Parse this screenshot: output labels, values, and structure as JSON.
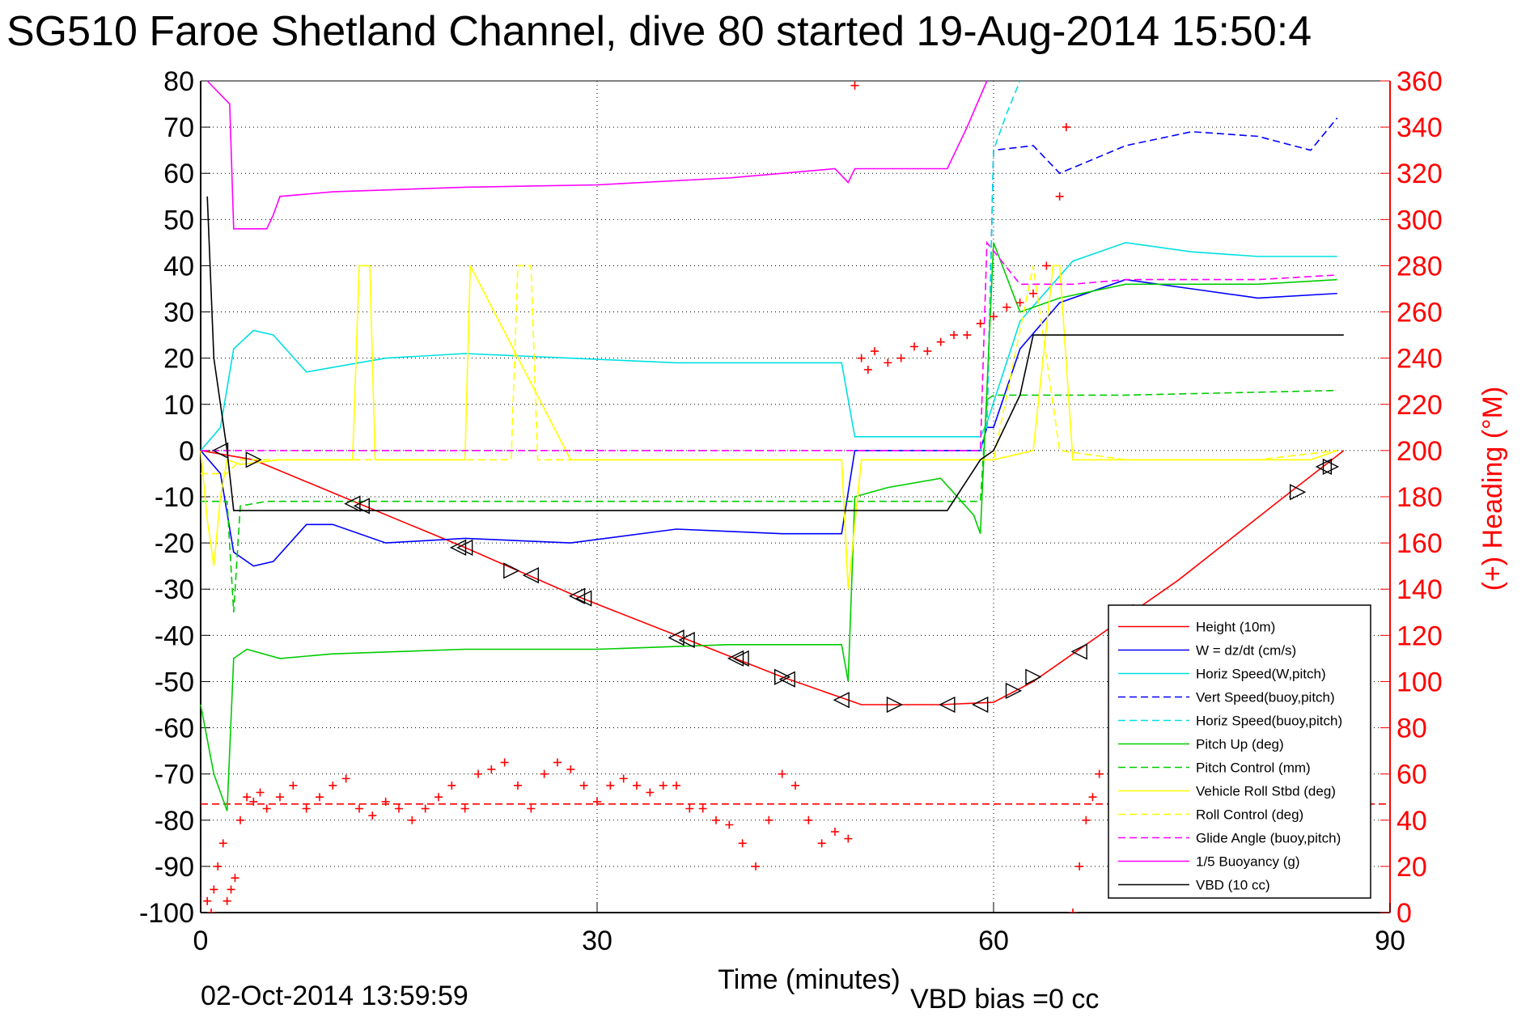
{
  "chart_data": {
    "type": "line",
    "title": "SG510 Faroe Shetland Channel, dive 80 started 19-Aug-2014 15:50:4",
    "xlabel": "Time (minutes)",
    "ylabel_right": "(+) Heading (°M)",
    "footer_date": "02-Oct-2014 13:59:59",
    "footer_note": "VBD bias =0 cc",
    "xlim": [
      0,
      90
    ],
    "ylim_left": [
      -100,
      80
    ],
    "ylim_right": [
      0,
      360
    ],
    "x_ticks": [
      "0",
      "30",
      "60",
      "90"
    ],
    "y_left_ticks": [
      "80",
      "70",
      "60",
      "50",
      "40",
      "30",
      "20",
      "10",
      "0",
      "-10",
      "-20",
      "-30",
      "-40",
      "-50",
      "-60",
      "-70",
      "-80",
      "-90",
      "-100"
    ],
    "y_right_ticks": [
      "360",
      "340",
      "320",
      "300",
      "280",
      "260",
      "240",
      "220",
      "200",
      "180",
      "160",
      "140",
      "120",
      "100",
      "80",
      "60",
      "40",
      "20",
      "0"
    ],
    "grid": true,
    "legend_position": "bottom-right",
    "series": [
      {
        "name": "Height (10m)",
        "color": "#ff0000",
        "style": "solid",
        "x": [
          0,
          4,
          12,
          20,
          28,
          36,
          44,
          49,
          50,
          56,
          60,
          63,
          66,
          70,
          74,
          78,
          82,
          86.5
        ],
        "y": [
          0,
          -2,
          -11.5,
          -21,
          -31,
          -40,
          -49,
          -54,
          -55,
          -55,
          -54.5,
          -50,
          -44,
          -36,
          -28,
          -19,
          -10,
          0
        ]
      },
      {
        "name": "W = dz/dt (cm/s)",
        "color": "#0000ff",
        "style": "solid",
        "x": [
          0,
          1.5,
          2.5,
          4,
          5.5,
          8,
          10,
          14,
          20,
          28,
          36,
          44,
          48.5,
          49.5,
          55,
          59,
          59.5,
          60,
          62,
          65,
          70,
          75,
          80,
          86
        ],
        "y": [
          0,
          -5,
          -22,
          -25,
          -24,
          -16,
          -16,
          -20,
          -19,
          -20,
          -17,
          -18,
          -18,
          0,
          0,
          0,
          5,
          5,
          22,
          32,
          37,
          35,
          33,
          34
        ]
      },
      {
        "name": "Horiz Speed(W,pitch)",
        "color": "#00e0e0",
        "style": "solid",
        "x": [
          0,
          1.5,
          2.5,
          4,
          5.5,
          8,
          10,
          14,
          20,
          28,
          36,
          44,
          48.5,
          49.5,
          55,
          59,
          59.5,
          62,
          66,
          70,
          75,
          80,
          86
        ],
        "y": [
          0,
          5,
          22,
          26,
          25,
          17,
          18,
          20,
          21,
          20,
          19,
          19,
          19,
          3,
          3,
          3,
          6,
          28,
          41,
          45,
          43,
          42,
          42
        ]
      },
      {
        "name": "Vert Speed(buoy,pitch)",
        "color": "#0000ff",
        "style": "dashed",
        "x": [
          59,
          59.5,
          60,
          63,
          65,
          70,
          75,
          80,
          84,
          86
        ],
        "y": [
          0,
          5,
          65,
          66,
          60,
          66,
          69,
          68,
          65,
          72
        ]
      },
      {
        "name": "Horiz Speed(buoy,pitch)",
        "color": "#00e0e0",
        "style": "dashed",
        "x": [
          59,
          59.5,
          60,
          61,
          62
        ],
        "y": [
          0,
          5,
          65,
          73,
          80
        ]
      },
      {
        "name": "Pitch Up (deg)",
        "color": "#00cc00",
        "style": "solid",
        "x": [
          0,
          1,
          2,
          2.5,
          3.5,
          6,
          10,
          20,
          30,
          40,
          48.5,
          49,
          49.5,
          52,
          56,
          58.5,
          59,
          60,
          62,
          65,
          70,
          80,
          86
        ],
        "y": [
          -55,
          -70,
          -78,
          -45,
          -43,
          -45,
          -44,
          -43,
          -43,
          -42,
          -42,
          -50,
          -10,
          -8,
          -6,
          -14,
          -18,
          45,
          30,
          33,
          36,
          36,
          37
        ]
      },
      {
        "name": "Pitch Control (mm)",
        "color": "#00cc00",
        "style": "dashed",
        "x": [
          0,
          2,
          2.5,
          3,
          5,
          20,
          40,
          59,
          59.5,
          60,
          70,
          86
        ],
        "y": [
          -11,
          -11,
          -35,
          -12,
          -11,
          -11,
          -11,
          -11,
          11,
          12,
          12,
          13
        ]
      },
      {
        "name": "Vehicle Roll Stbd (deg)",
        "color": "#ffff00",
        "style": "solid",
        "x": [
          0,
          0.5,
          1,
          1.5,
          2,
          3,
          6,
          11.5,
          12,
          12.8,
          13.2,
          20,
          20.4,
          28,
          40,
          48.5,
          49,
          50,
          56,
          60,
          63,
          64.5,
          65,
          66,
          70,
          75,
          80,
          84,
          86
        ],
        "y": [
          0,
          -15,
          -25,
          -10,
          -2,
          -3,
          -2,
          -2,
          40,
          40,
          -2,
          -2,
          40,
          -2,
          -2,
          -2,
          -30,
          -2,
          -2,
          -2,
          0,
          40,
          40,
          -2,
          -2,
          -2,
          -2,
          -2,
          0
        ]
      },
      {
        "name": "Roll Control (deg)",
        "color": "#ffff00",
        "style": "dashed",
        "x": [
          0,
          2,
          3,
          5,
          23.5,
          24,
          25,
          25.5,
          30,
          40,
          48.5,
          49,
          50,
          56,
          60,
          63,
          65,
          70,
          80,
          86
        ],
        "y": [
          -5,
          -5,
          -2,
          -2,
          -2,
          40,
          40,
          -2,
          -2,
          -2,
          -2,
          -30,
          -2,
          -2,
          -2,
          40,
          0,
          -2,
          -2,
          0
        ]
      },
      {
        "name": "Glide Angle (buoy,pitch)",
        "color": "#ff00ff",
        "style": "dashed",
        "x": [
          0,
          20,
          40,
          59,
          59.5,
          62,
          66,
          70,
          80,
          86
        ],
        "y": [
          0,
          0,
          0,
          0,
          45,
          36,
          36,
          37,
          37,
          38
        ]
      },
      {
        "name": "1/5 Buoyancy (g)",
        "color": "#ff00ff",
        "style": "solid",
        "x": [
          0.5,
          2.2,
          2.5,
          5,
          5.5,
          6,
          10,
          20,
          30,
          40,
          48,
          49,
          49.5,
          55,
          56.5,
          58,
          59.5
        ],
        "y": [
          80,
          75,
          48,
          48,
          51,
          55,
          56,
          57,
          57.5,
          59,
          61,
          58,
          61,
          61,
          61,
          70,
          80
        ]
      },
      {
        "name": "VBD (10 cc)",
        "color": "#000000",
        "style": "solid",
        "x": [
          0.5,
          1,
          2,
          2.5,
          10,
          20,
          40,
          56.5,
          59,
          60,
          62,
          63,
          70,
          80,
          86.5
        ],
        "y": [
          55,
          20,
          0,
          -13,
          -13,
          -13,
          -13,
          -13,
          -2,
          0,
          12,
          25,
          25,
          25,
          25
        ]
      }
    ],
    "heading_points_right_axis": {
      "color": "#ff0000",
      "marker": "+",
      "x": [
        0.5,
        0.8,
        1,
        1.3,
        1.7,
        2,
        2.3,
        2.6,
        3,
        3.5,
        4,
        4.5,
        5,
        6,
        7,
        8,
        9,
        10,
        11,
        12,
        13,
        14,
        15,
        16,
        17,
        18,
        19,
        20,
        21,
        22,
        23,
        24,
        25,
        26,
        27,
        28,
        29,
        30,
        31,
        32,
        33,
        34,
        35,
        36,
        37,
        38,
        39,
        40,
        41,
        42,
        43,
        44,
        45,
        46,
        47,
        48,
        49,
        49.5,
        50,
        50.5,
        51,
        52,
        53,
        54,
        55,
        56,
        57,
        58,
        59,
        60,
        61,
        62,
        63,
        64,
        65,
        65.5,
        66,
        66.5,
        67,
        67.5,
        68,
        69,
        70
      ],
      "y": [
        5,
        0,
        10,
        20,
        30,
        5,
        10,
        15,
        40,
        50,
        48,
        52,
        45,
        50,
        55,
        45,
        50,
        55,
        58,
        45,
        42,
        48,
        45,
        40,
        45,
        50,
        55,
        45,
        60,
        62,
        65,
        55,
        45,
        60,
        65,
        62,
        55,
        48,
        55,
        58,
        55,
        52,
        55,
        55,
        45,
        45,
        40,
        38,
        30,
        20,
        40,
        60,
        55,
        40,
        30,
        35,
        32,
        358,
        240,
        235,
        243,
        238,
        240,
        245,
        243,
        247,
        250,
        250,
        255,
        258,
        262,
        264,
        268,
        280,
        310,
        340,
        0,
        20,
        40,
        50,
        60,
        70,
        80
      ]
    },
    "heading_target_right_axis": 47,
    "markers": {
      "x": [
        1.5,
        4,
        11.5,
        12.2,
        19.5,
        20,
        23.5,
        25,
        28.5,
        29,
        36,
        36.8,
        40.5,
        40.9,
        44,
        44.4,
        48.5,
        52.5,
        56.5,
        59,
        61.5,
        63,
        66.5,
        70,
        83,
        85,
        85.5
      ],
      "y": [
        0,
        -2,
        -11.5,
        -12,
        -21,
        -21,
        -26,
        -27,
        -31.5,
        -32,
        -40.5,
        -41,
        -45,
        -45,
        -49,
        -49.5,
        -54,
        -55,
        -55,
        -55,
        -52,
        -49,
        -43.5,
        -35,
        -9,
        -3.5,
        -3.5
      ],
      "dir": [
        "L",
        "R",
        "L",
        "L",
        "L",
        "L",
        "R",
        "L",
        "L",
        "L",
        "L",
        "L",
        "L",
        "L",
        "R",
        "L",
        "L",
        "R",
        "L",
        "L",
        "R",
        "R",
        "L",
        "L",
        "R",
        "L",
        "R"
      ]
    }
  }
}
